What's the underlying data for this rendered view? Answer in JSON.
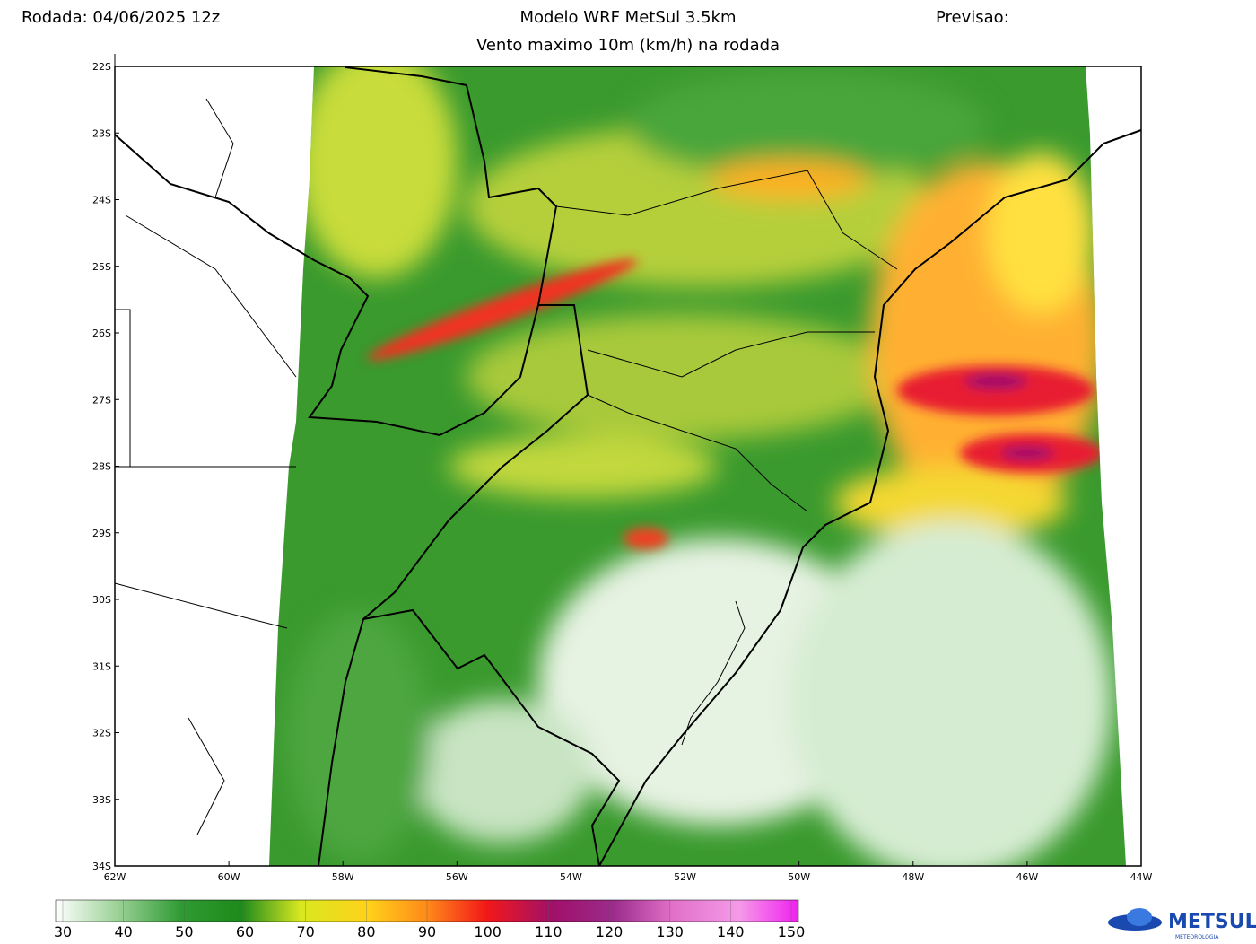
{
  "header": {
    "run": "Rodada: 04/06/2025 12z",
    "title": "Modelo WRF MetSul 3.5km",
    "forecast": "Previsao:",
    "subtitle": "Vento maximo 10m (km/h) na rodada"
  },
  "map": {
    "lat_labels": [
      "22S",
      "23S",
      "24S",
      "25S",
      "26S",
      "27S",
      "28S",
      "29S",
      "30S",
      "31S",
      "32S",
      "33S",
      "34S"
    ],
    "lon_labels": [
      "62W",
      "60W",
      "58W",
      "56W",
      "54W",
      "52W",
      "50W",
      "48W",
      "46W",
      "44W"
    ]
  },
  "colorbar": {
    "ticks": [
      30,
      40,
      50,
      60,
      70,
      80,
      90,
      100,
      110,
      120,
      130,
      140,
      150
    ]
  },
  "logo": {
    "name": "METSUL",
    "tagline": "METEOROLOGIA"
  }
}
